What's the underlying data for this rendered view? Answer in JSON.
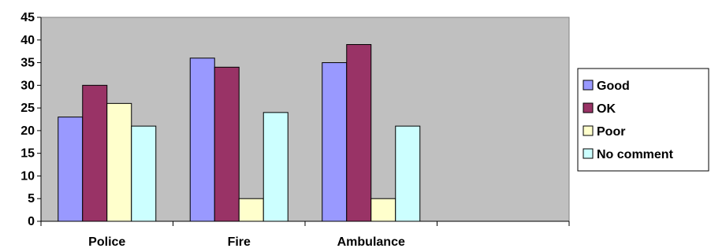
{
  "chart_data": {
    "type": "bar",
    "title": "",
    "xlabel": "",
    "ylabel": "",
    "categories": [
      "Police",
      "Fire",
      "Ambulance",
      ""
    ],
    "series": [
      {
        "name": "Good",
        "values": [
          23,
          36,
          35,
          null
        ],
        "color": "#9999ff"
      },
      {
        "name": "OK",
        "values": [
          30,
          34,
          39,
          null
        ],
        "color": "#993366"
      },
      {
        "name": "Poor",
        "values": [
          26,
          5,
          5,
          null
        ],
        "color": "#ffffcc"
      },
      {
        "name": "No comment",
        "values": [
          21,
          24,
          21,
          null
        ],
        "color": "#ccffff"
      }
    ],
    "ylim": [
      0,
      45
    ],
    "yticks": [
      0,
      5,
      10,
      15,
      20,
      25,
      30,
      35,
      40,
      45
    ],
    "grid": false,
    "plot_background": "#c0c0c0",
    "legend": "right"
  }
}
